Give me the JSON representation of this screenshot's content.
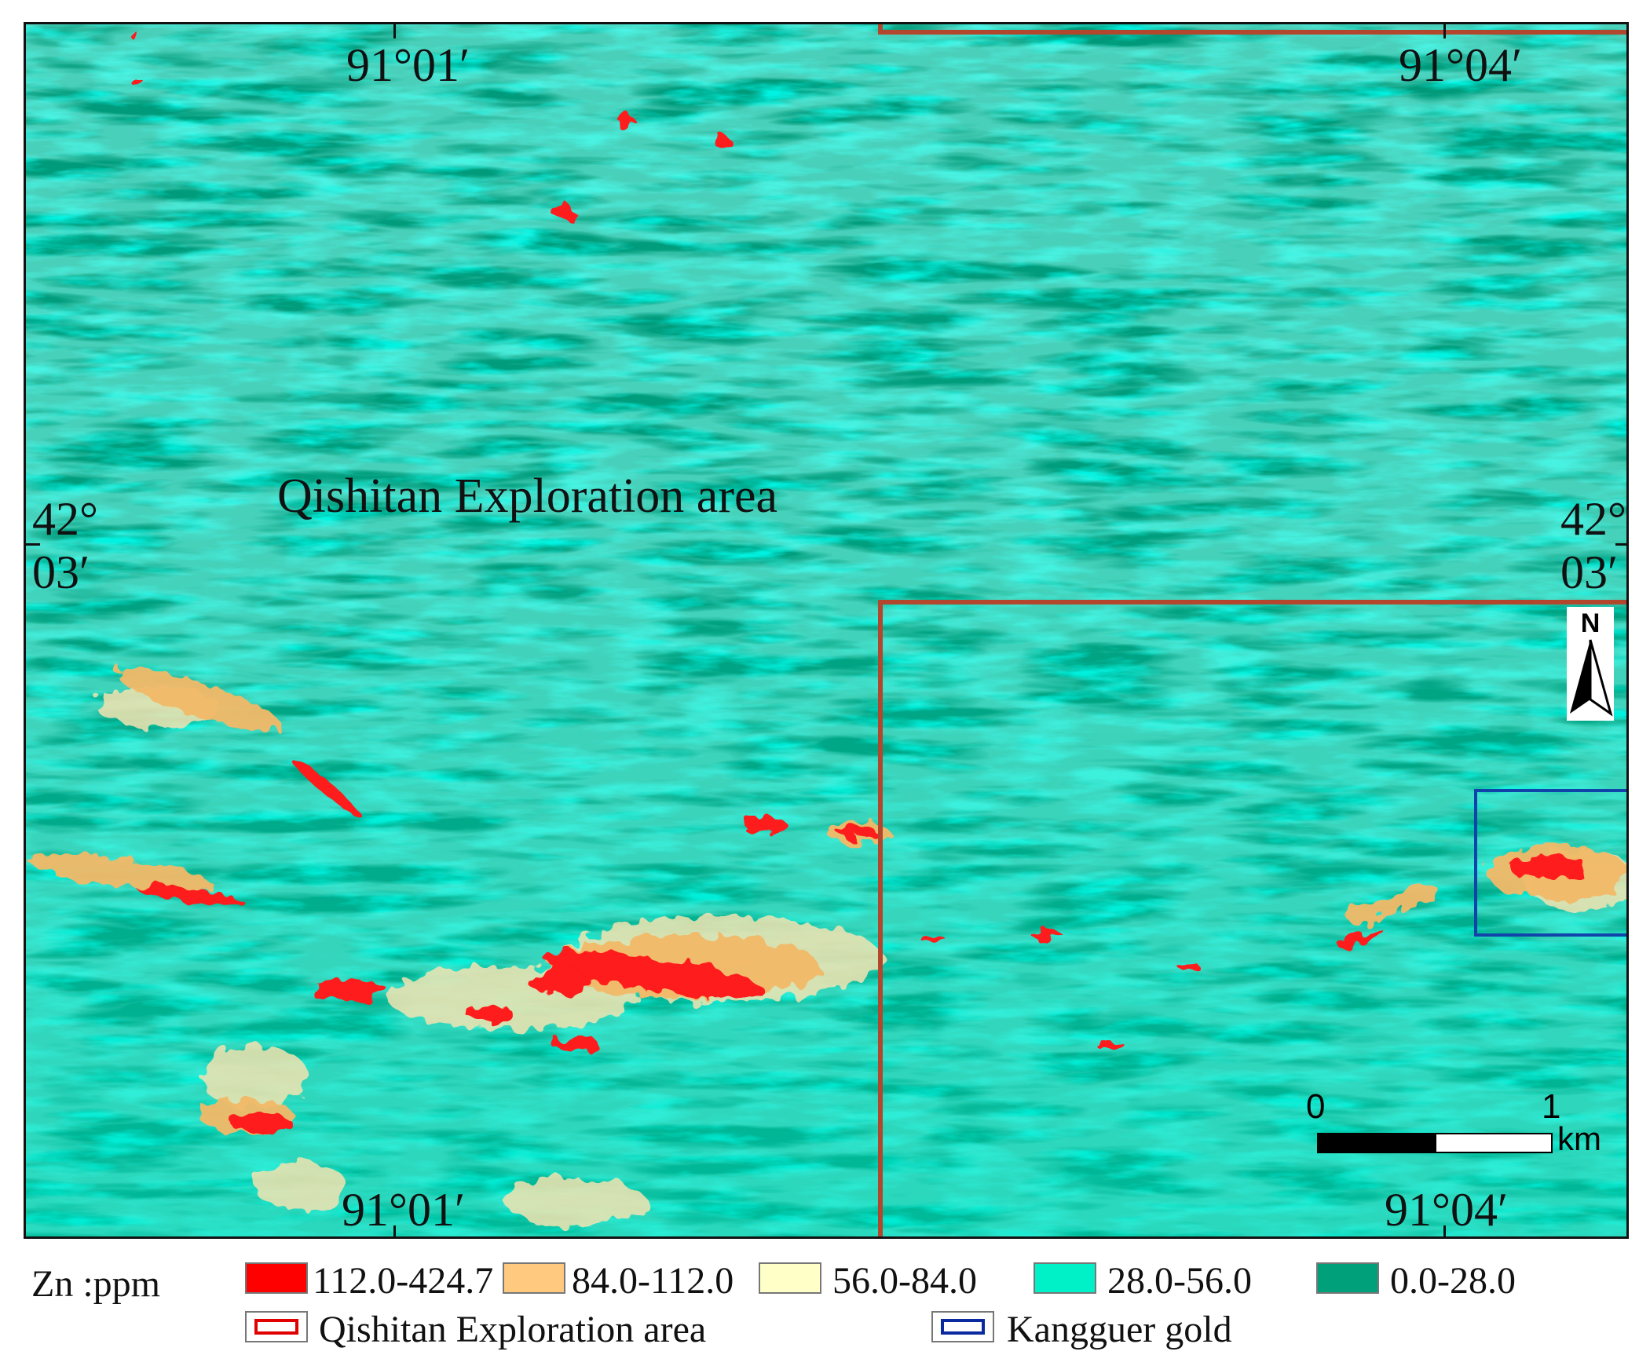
{
  "map": {
    "area_label": "Qishitan Exploration area",
    "coords": {
      "top_left_lon": "91°01′",
      "top_right_lon": "91°04′",
      "bottom_left_lon": "91°01′",
      "bottom_right_lon": "91°04′",
      "left_lat_deg": "42°",
      "left_lat_min": "03′",
      "right_lat_deg": "42°",
      "right_lat_min": "03′"
    },
    "north_label": "N",
    "scale": {
      "start": "0",
      "end": "1",
      "unit": "km"
    },
    "colors": {
      "background": "#009a7a",
      "texture_light": "#00e2c0",
      "texture_mid": "#2fd9c0",
      "anomaly_high": "#ff1a1a",
      "anomaly_mid": "#f3b968",
      "anomaly_low": "#f3e3b0",
      "exploration_outline": "#b2472d",
      "kangguer_outline": "#1144aa"
    },
    "boundary_icon": "north-arrow-icon"
  },
  "legend": {
    "title": "Zn :ppm",
    "classes": [
      {
        "label": "112.0-424.7",
        "color": "#ff0000"
      },
      {
        "label": "84.0-112.0",
        "color": "#ffc980"
      },
      {
        "label": "56.0-84.0",
        "color": "#ffffc8"
      },
      {
        "label": "28.0-56.0",
        "color": "#00f0c8"
      },
      {
        "label": "0.0-28.0",
        "color": "#00a07a"
      }
    ],
    "outlines": [
      {
        "label": "Qishitan Exploration area",
        "color": "#e00000"
      },
      {
        "label": "Kangguer gold",
        "color": "#0a2aa0"
      }
    ]
  }
}
